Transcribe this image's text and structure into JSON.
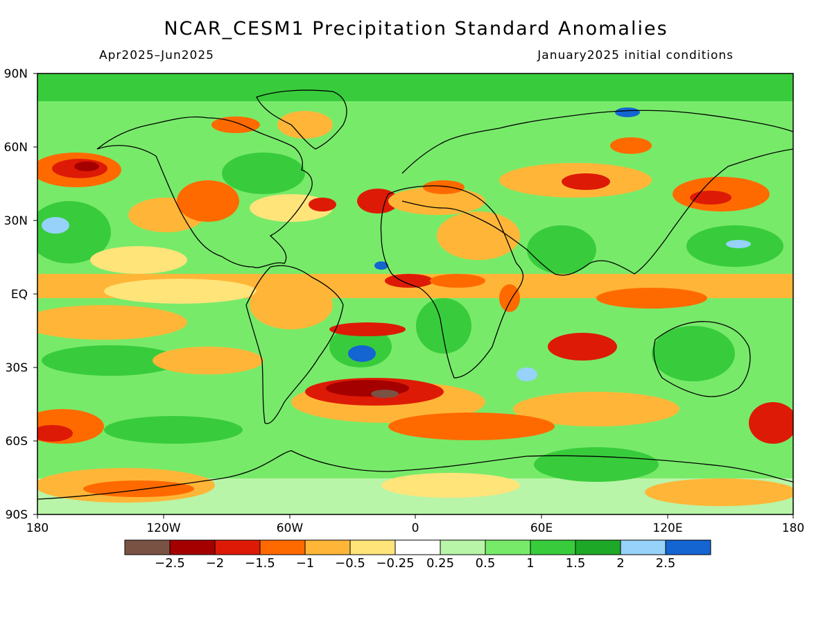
{
  "title": "NCAR_CESM1 Precipitation Standard Anomalies",
  "period": "Apr2025–Jun2025",
  "init_conditions": "January2025 initial conditions",
  "lat_labels": [
    "90N",
    "60N",
    "30N",
    "EQ",
    "30S",
    "60S",
    "90S"
  ],
  "lon_labels": [
    "180",
    "120W",
    "60W",
    "0",
    "60E",
    "120E",
    "180"
  ],
  "colorbar": {
    "colors": [
      "#7a5244",
      "#a50000",
      "#dd1a06",
      "#ff6a00",
      "#ffb638",
      "#ffe47a",
      "#ffffff",
      "#b8f5a8",
      "#78ea6a",
      "#38cc3c",
      "#1ea828",
      "#96d2fa",
      "#1464d2"
    ],
    "labels": [
      "−2.5",
      "−2",
      "−1.5",
      "−1",
      "−0.5",
      "−0.25",
      "0.25",
      "0.5",
      "1",
      "1.5",
      "2",
      "2.5"
    ]
  },
  "regions": {
    "north_pacific_dry": "#dd1a06",
    "south_atlantic_dry": "#a50000",
    "brazil_wet": "#1464d2",
    "siberia_wet": "#1464d2"
  }
}
